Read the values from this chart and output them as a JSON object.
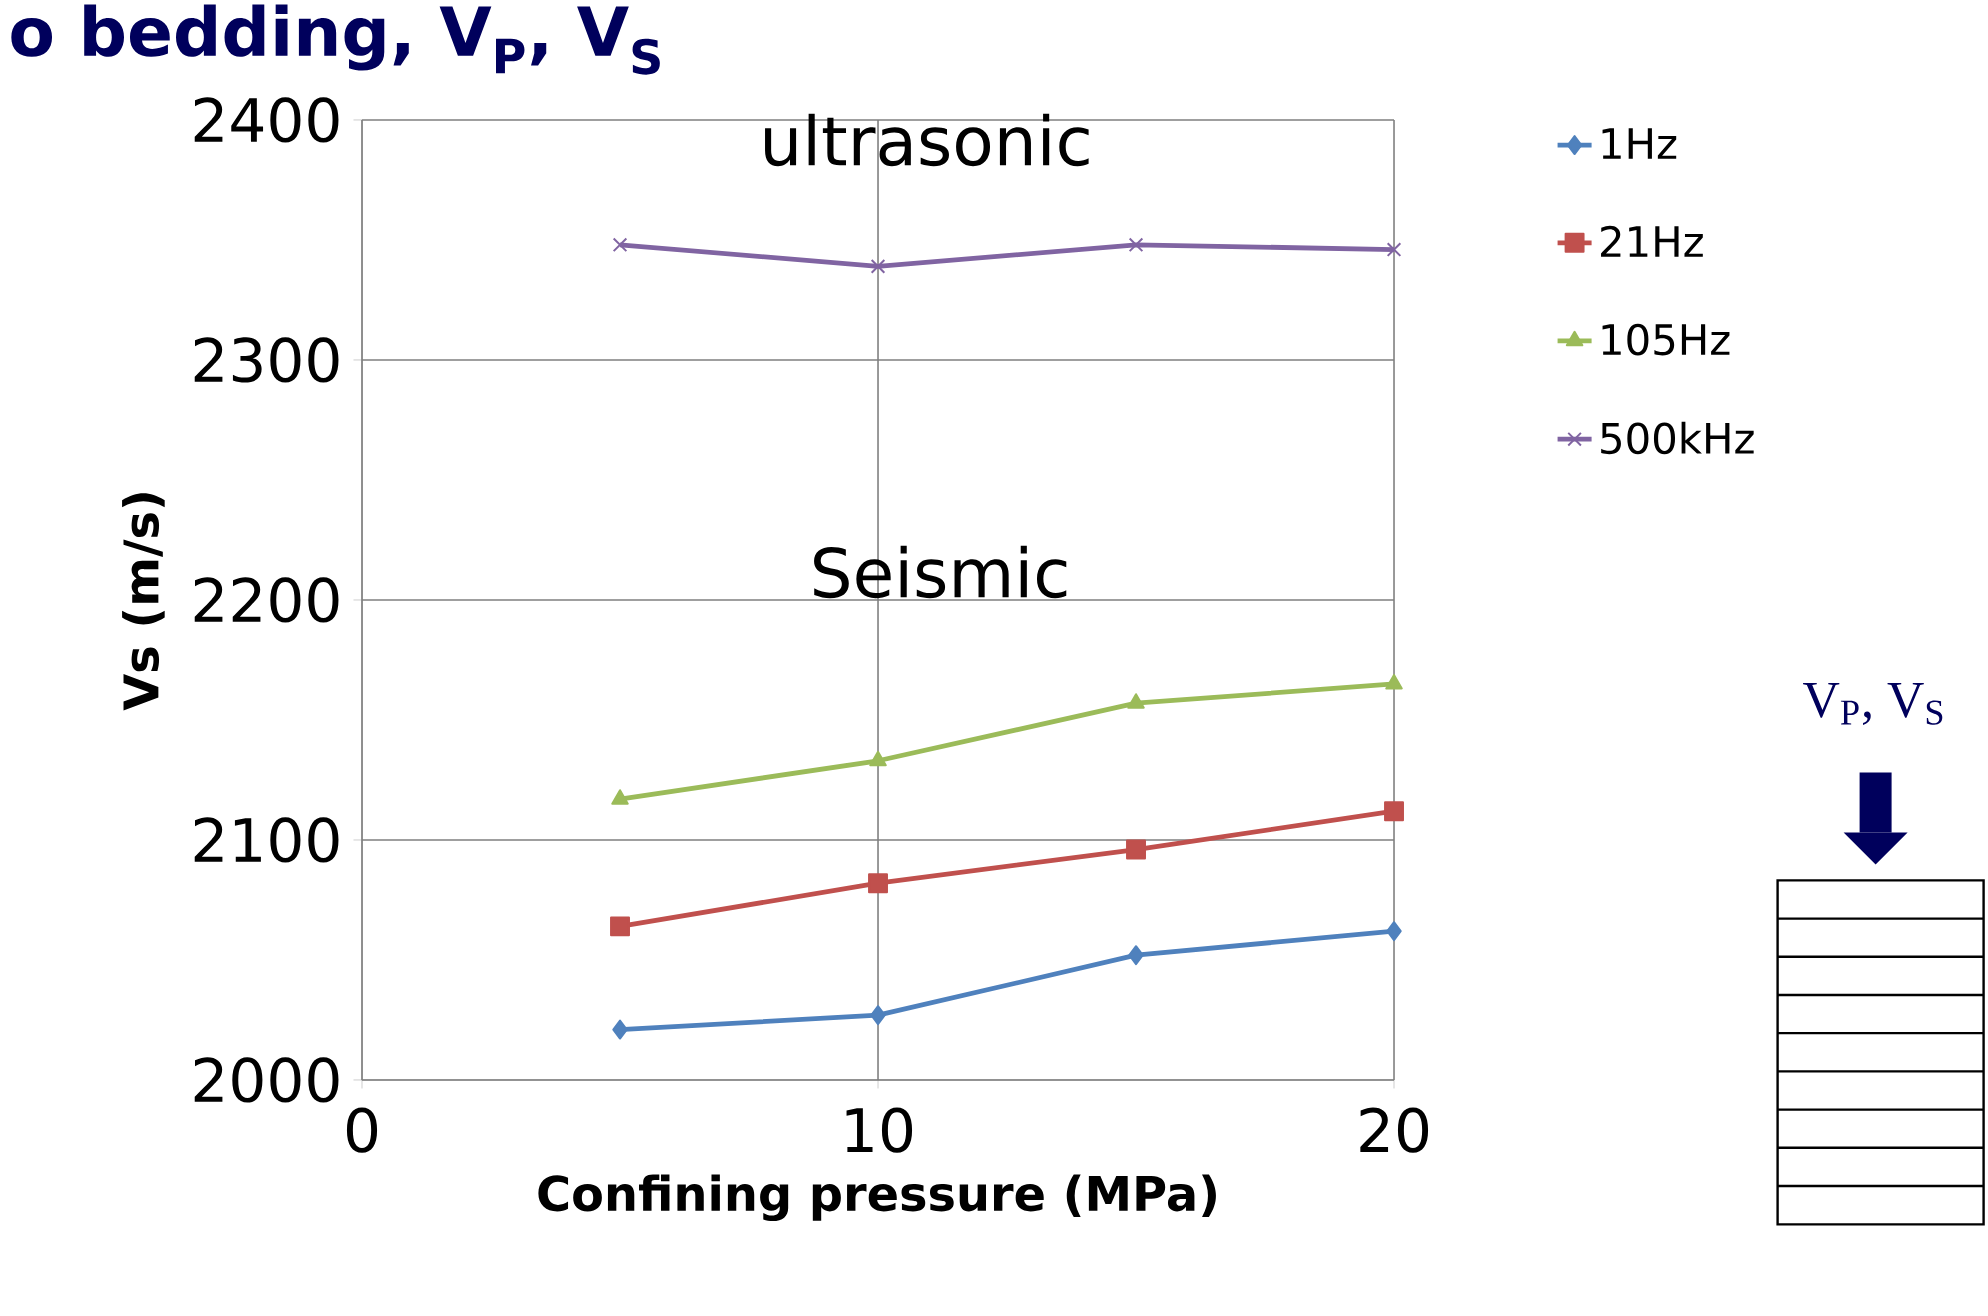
{
  "chart_data": {
    "type": "line",
    "title": "o bedding, V$_{P}$, V$_{S}$",
    "xlabel": "Confining pressure (MPa)",
    "ylabel": "Vs (m/s)",
    "x": [
      5,
      10,
      15,
      20
    ],
    "series": [
      {
        "name": "1Hz",
        "color": "#4f81bd",
        "marker": "diamond",
        "values": [
          2021,
          2027,
          2052,
          2062
        ]
      },
      {
        "name": "21Hz",
        "color": "#c0504d",
        "marker": "square",
        "values": [
          2064,
          2082,
          2096,
          2112
        ]
      },
      {
        "name": "105Hz",
        "color": "#9bbb59",
        "marker": "triangle",
        "values": [
          2117,
          2133,
          2157,
          2165
        ]
      },
      {
        "name": "500kHz",
        "color": "#8064a2",
        "marker": "cross",
        "values": [
          2348,
          2339,
          2348,
          2346
        ]
      }
    ],
    "xlim": [
      0,
      20
    ],
    "xticks": [
      0,
      10,
      20
    ],
    "ylim": [
      2000,
      2400
    ],
    "yticks": [
      2000,
      2100,
      2200,
      2300,
      2400
    ],
    "grid": true,
    "legend": "right",
    "line_style": "solid",
    "annotations": [
      "ultrasonic",
      "Seismic",
      "V$_{P}$, V$_{S}$"
    ]
  }
}
